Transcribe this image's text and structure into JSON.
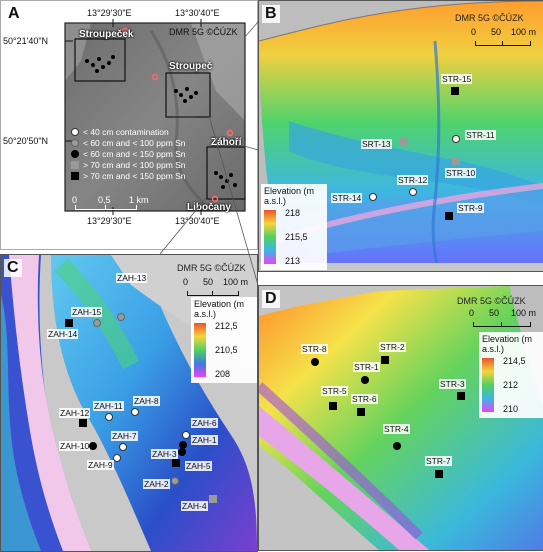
{
  "panelA": {
    "label": "A",
    "credit": "DMR 5G ©ČÚZK",
    "coords_top": [
      "13°29'30\"E",
      "13°30'40\"E"
    ],
    "coords_bottom": [
      "13°29'30\"E",
      "13°30'40\"E"
    ],
    "coords_left": [
      "50°21'40\"N",
      "50°20'50\"N"
    ],
    "places": [
      "Stroupeček",
      "Stroupeč",
      "Záhoří",
      "Libočany"
    ],
    "scale": {
      "ticks": [
        "0",
        "0,5",
        "1 km"
      ]
    },
    "legend": [
      {
        "symbol": "white-circle",
        "text": "< 40 cm contamination"
      },
      {
        "symbol": "grey-circle",
        "text": "< 60 cm and < 100 ppm Sn"
      },
      {
        "symbol": "black-circle",
        "text": "< 60 cm and < 150 ppm Sn"
      },
      {
        "symbol": "grey-square",
        "text": "> 70 cm and < 100 ppm Sn"
      },
      {
        "symbol": "black-square",
        "text": "> 70 cm and < 150 ppm Sn"
      }
    ]
  },
  "panelB": {
    "label": "B",
    "credit": "DMR 5G ©ČÚZK",
    "scale": {
      "ticks": [
        "0",
        "50",
        "100 m"
      ]
    },
    "legend": {
      "title": "Elevation (m a.s.l.)",
      "values": [
        "218",
        "215,5",
        "213"
      ]
    },
    "points": [
      {
        "name": "STR-15",
        "symbol": "black-square"
      },
      {
        "name": "STR-11",
        "symbol": "white-circle"
      },
      {
        "name": "SRT-13",
        "symbol": "grey-square"
      },
      {
        "name": "STR-10",
        "symbol": "grey-square"
      },
      {
        "name": "STR-12",
        "symbol": "white-circle"
      },
      {
        "name": "STR-14",
        "symbol": "white-circle"
      },
      {
        "name": "STR-9",
        "symbol": "black-square"
      }
    ]
  },
  "panelC": {
    "label": "C",
    "credit": "DMR 5G ©ČÚZK",
    "scale": {
      "ticks": [
        "0",
        "50",
        "100 m"
      ]
    },
    "legend": {
      "title": "Elevation (m a.s.l.)",
      "values": [
        "212,5",
        "210,5",
        "208"
      ]
    },
    "points": [
      {
        "name": "ZAH-13",
        "symbol": "grey-circle"
      },
      {
        "name": "ZAH-15",
        "symbol": "grey-circle"
      },
      {
        "name": "ZAH-14",
        "symbol": "black-square"
      },
      {
        "name": "ZAH-8",
        "symbol": "white-circle"
      },
      {
        "name": "ZAH-11",
        "symbol": "white-circle"
      },
      {
        "name": "ZAH-12",
        "symbol": "black-square"
      },
      {
        "name": "ZAH-7",
        "symbol": "white-circle"
      },
      {
        "name": "ZAH-10",
        "symbol": "black-circle"
      },
      {
        "name": "ZAH-9",
        "symbol": "white-circle"
      },
      {
        "name": "ZAH-6",
        "symbol": "white-circle"
      },
      {
        "name": "ZAH-1",
        "symbol": "black-circle"
      },
      {
        "name": "ZAH-3",
        "symbol": "black-circle"
      },
      {
        "name": "ZAH-5",
        "symbol": "black-square"
      },
      {
        "name": "ZAH-2",
        "symbol": "grey-circle"
      },
      {
        "name": "ZAH-4",
        "symbol": "grey-square"
      }
    ]
  },
  "panelD": {
    "label": "D",
    "credit": "DMR 5G ©ČÚZK",
    "scale": {
      "ticks": [
        "0",
        "50",
        "100 m"
      ]
    },
    "legend": {
      "title": "Elevation (m a.s.l.)",
      "values": [
        "214,5",
        "212",
        "210"
      ]
    },
    "points": [
      {
        "name": "STR-8",
        "symbol": "black-circle"
      },
      {
        "name": "STR-2",
        "symbol": "black-square"
      },
      {
        "name": "STR-1",
        "symbol": "black-circle"
      },
      {
        "name": "STR-5",
        "symbol": "black-square"
      },
      {
        "name": "STR-6",
        "symbol": "black-square"
      },
      {
        "name": "STR-3",
        "symbol": "black-square"
      },
      {
        "name": "STR-4",
        "symbol": "black-circle"
      },
      {
        "name": "STR-7",
        "symbol": "black-square"
      }
    ]
  }
}
